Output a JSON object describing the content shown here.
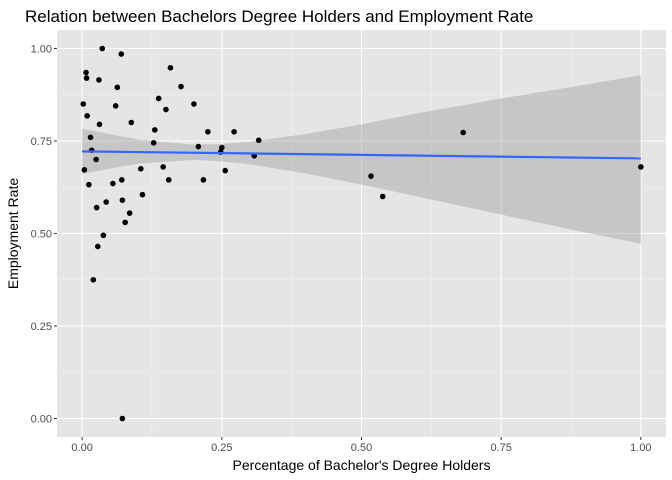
{
  "chart_data": {
    "type": "scatter",
    "title": "Relation between Bachelors Degree Holders and Employment Rate",
    "xlabel": "Percentage of Bachelor's Degree Holders",
    "ylabel": "Employment Rate",
    "xlim": [
      -0.045,
      1.045
    ],
    "ylim": [
      -0.05,
      1.05
    ],
    "x_ticks": [
      0.0,
      0.25,
      0.5,
      0.75,
      1.0
    ],
    "x_tick_labels": [
      "0.00",
      "0.25",
      "0.50",
      "0.75",
      "1.00"
    ],
    "y_ticks": [
      0.0,
      0.25,
      0.5,
      0.75,
      1.0
    ],
    "y_tick_labels": [
      "0.00",
      "0.25",
      "0.50",
      "0.75",
      "1.00"
    ],
    "grid": true,
    "background": "#e5e5e5",
    "point_color": "#000000",
    "trend_color": "#3366ff",
    "band_color": "#999999",
    "points": [
      {
        "x": 0.002,
        "y": 0.85
      },
      {
        "x": 0.004,
        "y": 0.672
      },
      {
        "x": 0.007,
        "y": 0.935
      },
      {
        "x": 0.008,
        "y": 0.92
      },
      {
        "x": 0.009,
        "y": 0.818
      },
      {
        "x": 0.012,
        "y": 0.632
      },
      {
        "x": 0.015,
        "y": 0.76
      },
      {
        "x": 0.017,
        "y": 0.725
      },
      {
        "x": 0.02,
        "y": 0.375
      },
      {
        "x": 0.025,
        "y": 0.7
      },
      {
        "x": 0.026,
        "y": 0.57
      },
      {
        "x": 0.028,
        "y": 0.465
      },
      {
        "x": 0.03,
        "y": 0.915
      },
      {
        "x": 0.031,
        "y": 0.795
      },
      {
        "x": 0.036,
        "y": 1.0
      },
      {
        "x": 0.038,
        "y": 0.495
      },
      {
        "x": 0.043,
        "y": 0.585
      },
      {
        "x": 0.055,
        "y": 0.635
      },
      {
        "x": 0.06,
        "y": 0.845
      },
      {
        "x": 0.063,
        "y": 0.895
      },
      {
        "x": 0.07,
        "y": 0.985
      },
      {
        "x": 0.071,
        "y": 0.645
      },
      {
        "x": 0.072,
        "y": 0.59
      },
      {
        "x": 0.072,
        "y": 0.0
      },
      {
        "x": 0.077,
        "y": 0.53
      },
      {
        "x": 0.085,
        "y": 0.555
      },
      {
        "x": 0.088,
        "y": 0.8
      },
      {
        "x": 0.105,
        "y": 0.675
      },
      {
        "x": 0.108,
        "y": 0.605
      },
      {
        "x": 0.128,
        "y": 0.745
      },
      {
        "x": 0.13,
        "y": 0.78
      },
      {
        "x": 0.137,
        "y": 0.865
      },
      {
        "x": 0.145,
        "y": 0.68
      },
      {
        "x": 0.15,
        "y": 0.835
      },
      {
        "x": 0.155,
        "y": 0.645
      },
      {
        "x": 0.158,
        "y": 0.948
      },
      {
        "x": 0.177,
        "y": 0.897
      },
      {
        "x": 0.2,
        "y": 0.85
      },
      {
        "x": 0.208,
        "y": 0.735
      },
      {
        "x": 0.217,
        "y": 0.645
      },
      {
        "x": 0.225,
        "y": 0.775
      },
      {
        "x": 0.248,
        "y": 0.72
      },
      {
        "x": 0.25,
        "y": 0.732
      },
      {
        "x": 0.256,
        "y": 0.67
      },
      {
        "x": 0.272,
        "y": 0.775
      },
      {
        "x": 0.308,
        "y": 0.71
      },
      {
        "x": 0.316,
        "y": 0.752
      },
      {
        "x": 0.517,
        "y": 0.655
      },
      {
        "x": 0.538,
        "y": 0.6
      },
      {
        "x": 0.682,
        "y": 0.773
      },
      {
        "x": 1.0,
        "y": 0.68
      }
    ],
    "trend_line": {
      "x": [
        0.0,
        1.0
      ],
      "y": [
        0.722,
        0.703
      ]
    },
    "confidence_band": {
      "x": [
        0.0,
        0.1,
        0.2,
        0.25,
        0.3,
        0.4,
        0.5,
        0.6,
        0.75,
        0.9,
        1.0
      ],
      "lower": [
        0.661,
        0.689,
        0.699,
        0.695,
        0.687,
        0.662,
        0.632,
        0.6,
        0.551,
        0.503,
        0.472
      ],
      "upper": [
        0.783,
        0.754,
        0.74,
        0.742,
        0.748,
        0.769,
        0.795,
        0.825,
        0.865,
        0.902,
        0.928
      ]
    }
  }
}
